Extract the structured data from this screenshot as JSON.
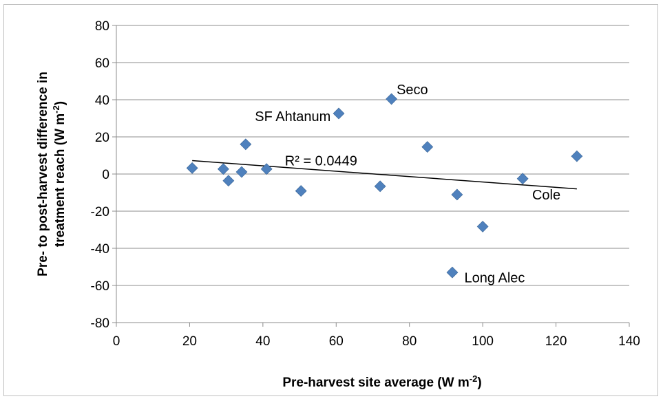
{
  "chart_data": {
    "type": "scatter",
    "xlabel": {
      "prefix": "Pre-harvest site average (W m",
      "sup": "-2",
      "suffix": ")"
    },
    "ylabel": {
      "line1": "Pre- to post-harvest difference in",
      "line2_prefix": "treatment reach (W m",
      "line2_sup": "-2",
      "line2_suffix": ")"
    },
    "xlim": [
      0,
      140
    ],
    "ylim": [
      -80,
      80
    ],
    "x_ticks": [
      0,
      20,
      40,
      60,
      80,
      100,
      120,
      140
    ],
    "y_ticks": [
      -80,
      -60,
      -40,
      -20,
      0,
      20,
      40,
      60,
      80
    ],
    "grid": {
      "horizontal": true,
      "vertical": false
    },
    "legend": "none",
    "marker_color": "#4f81bd",
    "points": [
      {
        "x": 20.7,
        "y": 3.2
      },
      {
        "x": 29.2,
        "y": 2.7
      },
      {
        "x": 30.6,
        "y": -3.6
      },
      {
        "x": 34.2,
        "y": 1.1
      },
      {
        "x": 35.3,
        "y": 16.0
      },
      {
        "x": 41.0,
        "y": 2.7
      },
      {
        "x": 50.4,
        "y": -9.1
      },
      {
        "x": 60.7,
        "y": 32.6
      },
      {
        "x": 72.0,
        "y": -6.6
      },
      {
        "x": 75.1,
        "y": 40.4
      },
      {
        "x": 84.9,
        "y": 14.6
      },
      {
        "x": 91.7,
        "y": -53.0
      },
      {
        "x": 93.0,
        "y": -11.1
      },
      {
        "x": 100.0,
        "y": -28.3
      },
      {
        "x": 110.9,
        "y": -2.5
      },
      {
        "x": 125.7,
        "y": 9.6
      }
    ],
    "trendline": {
      "x": [
        20.7,
        125.7
      ],
      "y": [
        7.2,
        -8.0
      ],
      "color": "#000000"
    },
    "annotations": [
      {
        "text": "Seco",
        "x": 76.5,
        "y": 45.5,
        "anchor": "start"
      },
      {
        "text": "SF Ahtanum",
        "x": 58.5,
        "y": 31.2,
        "anchor": "end"
      },
      {
        "text": "R² = 0.0449",
        "x": 46.0,
        "y": 7.2,
        "anchor": "start"
      },
      {
        "text": "Cole",
        "x": 113.5,
        "y": -11.2,
        "anchor": "start"
      },
      {
        "text": "Long Alec",
        "x": 95.0,
        "y": -55.8,
        "anchor": "start"
      }
    ]
  }
}
